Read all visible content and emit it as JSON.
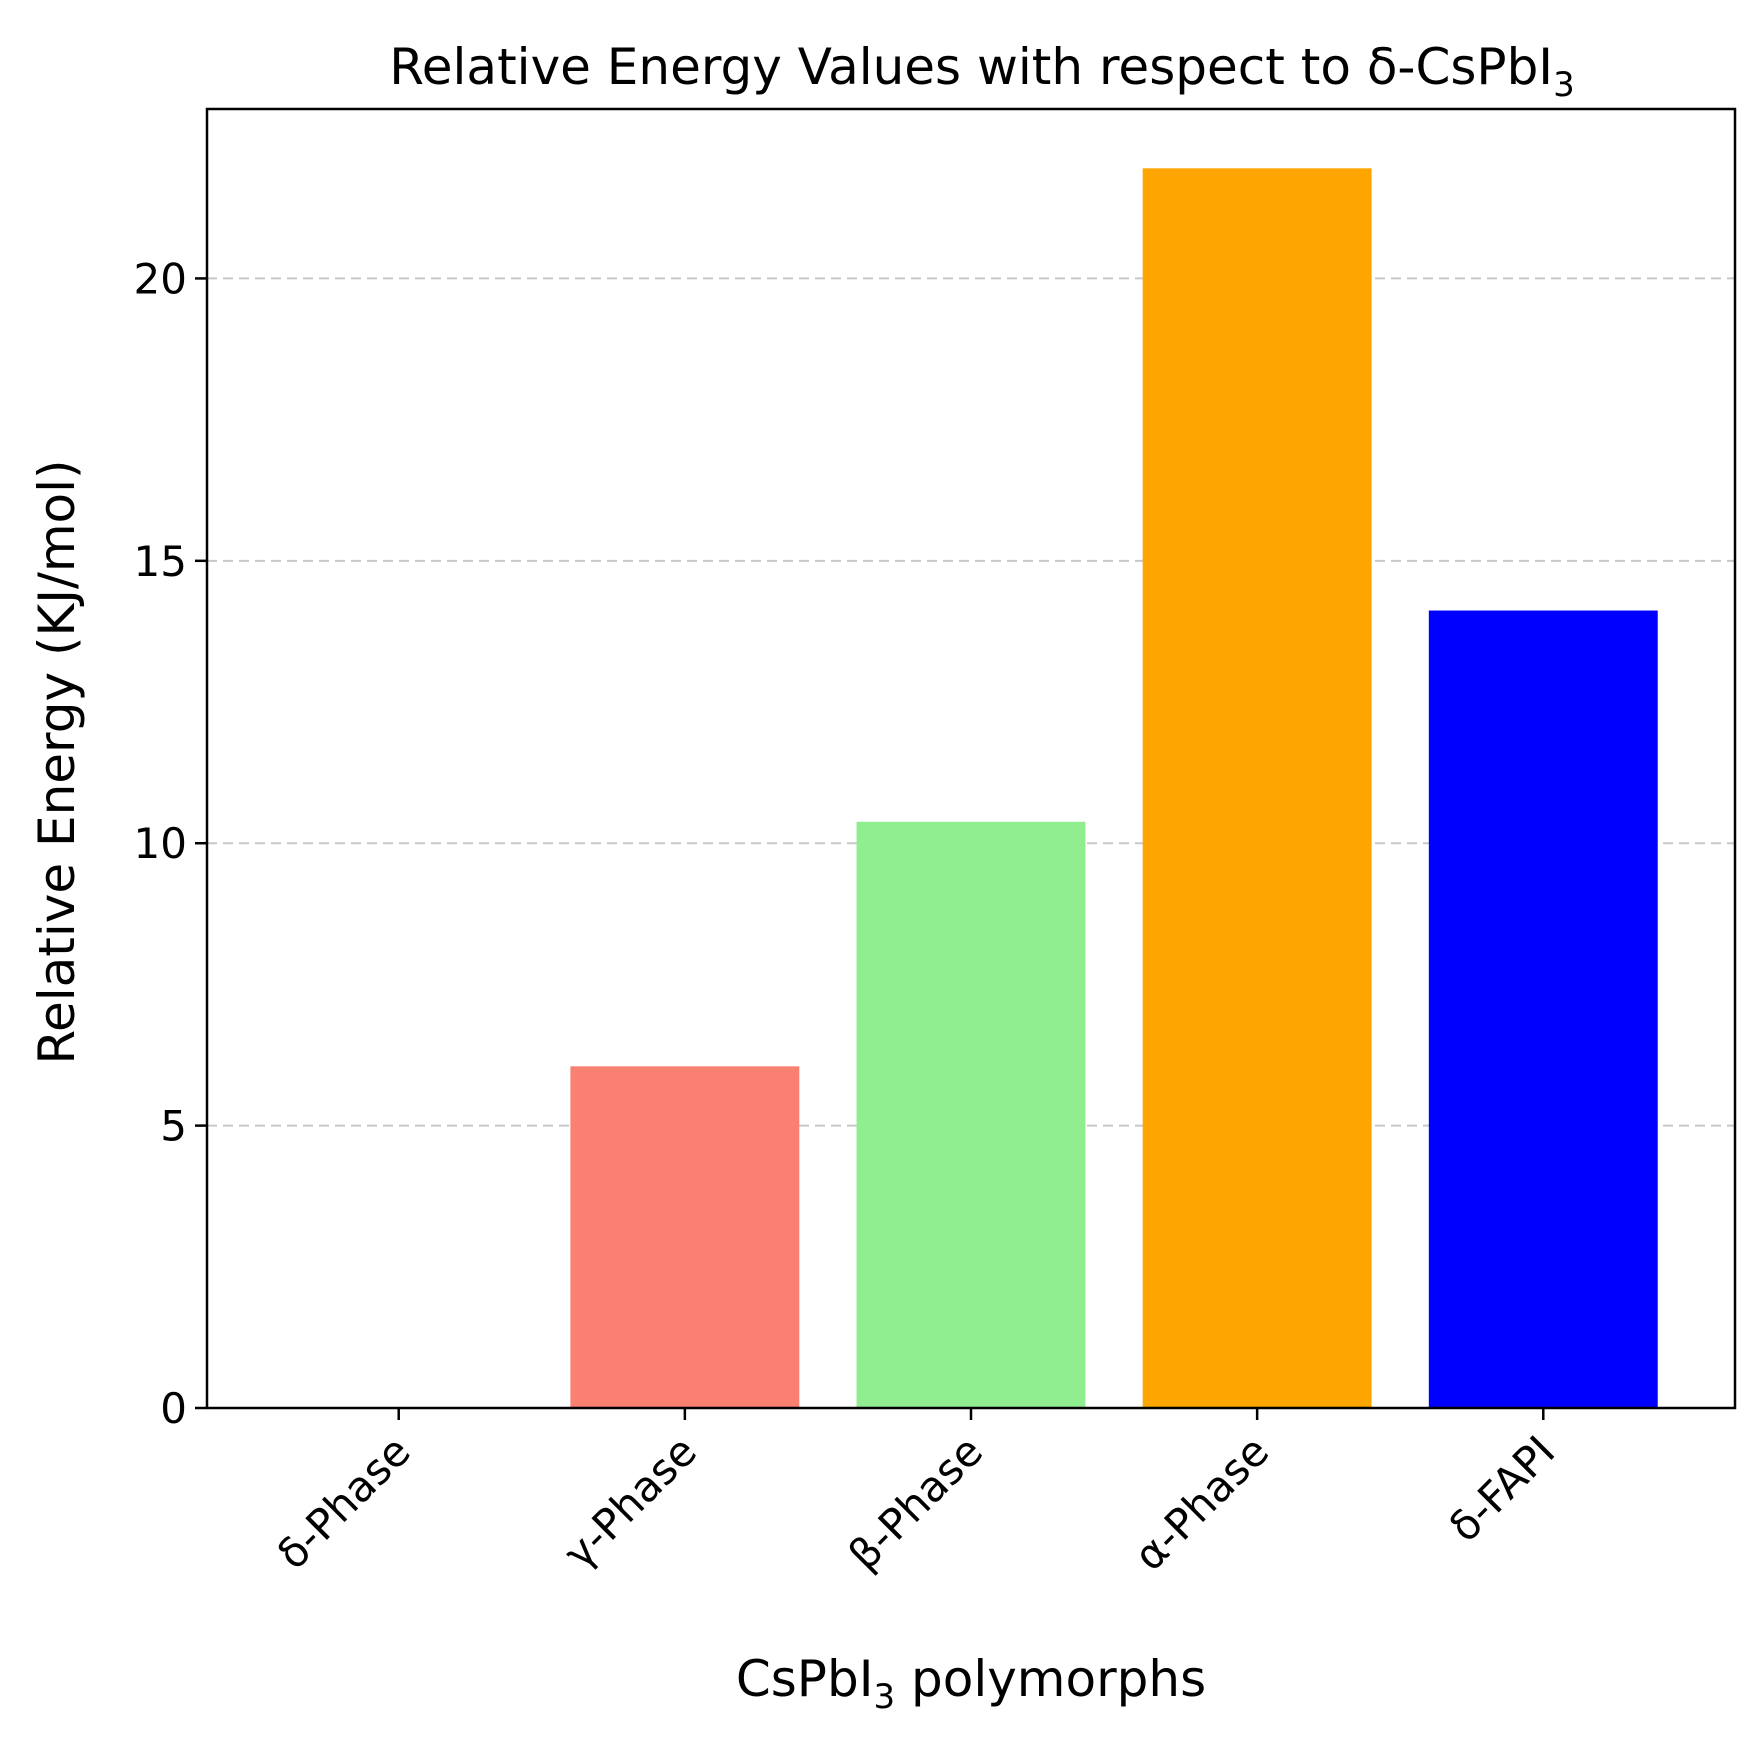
{
  "chart_data": {
    "type": "bar",
    "title": "Relative Energy Values with respect to δ-CsPbI",
    "title_sub": "3",
    "xlabel_pre": "CsPbI",
    "xlabel_sub": "3",
    "xlabel_post": " polymorphs",
    "ylabel": "Relative Energy (KJ/mol)",
    "categories": [
      "δ-Phase",
      "γ-Phase",
      "β-Phase",
      "α-Phase",
      "δ-FAPI"
    ],
    "values": [
      0,
      6.05,
      10.38,
      21.95,
      14.12
    ],
    "colors": [
      "#ffffff",
      "#fa8072",
      "#90ee90",
      "#ffa500",
      "#0000ff"
    ],
    "ylim": [
      0,
      23
    ],
    "yticks": [
      0,
      5,
      10,
      15,
      20
    ],
    "grid": "y-dashed",
    "legend": "none"
  }
}
